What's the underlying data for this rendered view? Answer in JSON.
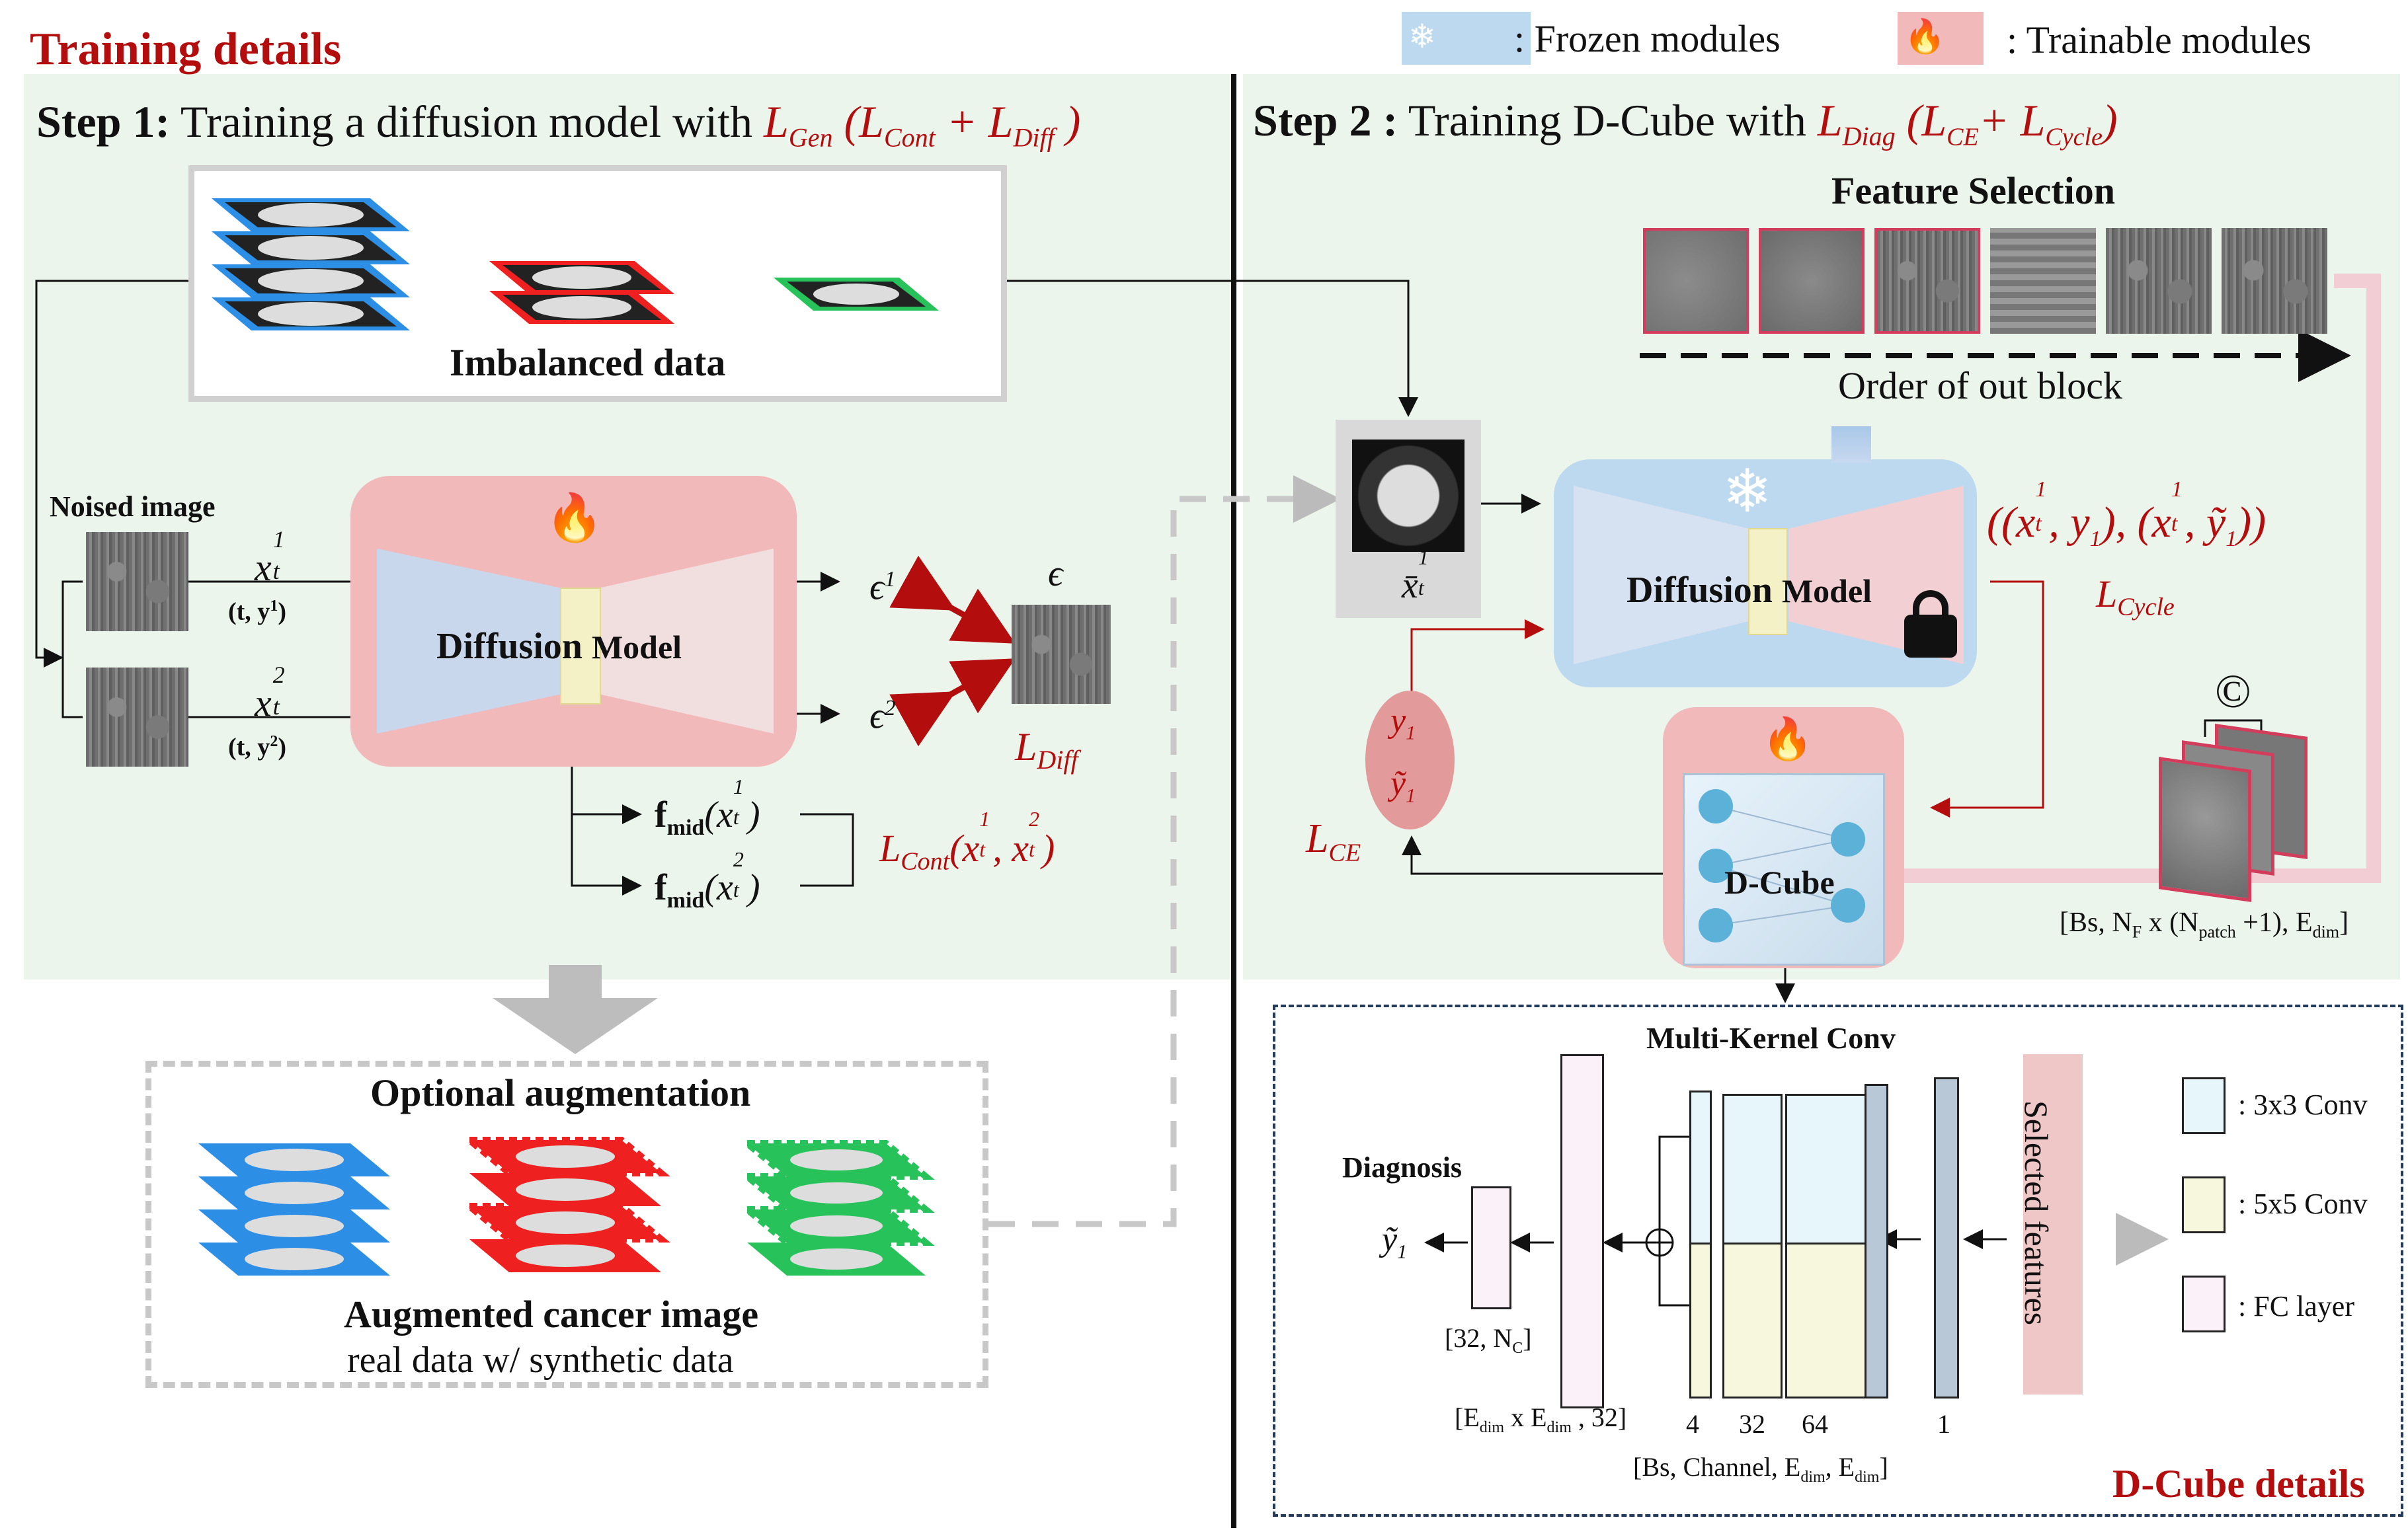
{
  "header": {
    "title": "Training details",
    "legend_frozen": ": Frozen modules",
    "legend_trainable": ": Trainable modules"
  },
  "step1": {
    "title_bold": "Step 1:",
    "title_text": "Training a diffusion model with",
    "loss_label": "L",
    "loss_sub": "Gen",
    "loss_detail": "(L",
    "loss_cont_sub": "Cont",
    "loss_plus": "+ L",
    "loss_diff_sub": "Diff",
    "loss_close": ")",
    "imbalanced_label": "Imbalanced data",
    "noised_label": "Noised image",
    "x1": "x",
    "x1_sup": "1",
    "x1_sub": "t",
    "x1_cond": "(t, y",
    "x1_cond_sup": "1",
    "x1_cond_close": ")",
    "x2": "x",
    "x2_sup": "2",
    "x2_sub": "t",
    "x2_cond": "(t, y",
    "x2_cond_sup": "2",
    "x2_cond_close": ")",
    "model_bold": "Diffusion",
    "model_text": "Model",
    "eps1": "ϵ",
    "eps1_sup": "1",
    "eps2": "ϵ",
    "eps2_sup": "2",
    "eps": "ϵ",
    "ldiff": "L",
    "ldiff_sub": "Diff",
    "fmid1": "f",
    "fmid1_sub": "mid",
    "fmid1_arg": "(x",
    "fmid1_arg_sup": "1",
    "fmid1_arg_sub": "t",
    "fmid1_close": ")",
    "fmid2": "f",
    "fmid2_sub": "mid",
    "fmid2_arg": "(x",
    "fmid2_arg_sup": "2",
    "fmid2_arg_sub": "t",
    "fmid2_close": ")",
    "lcont": "L",
    "lcont_sub": "Cont",
    "lcont_args": "(x",
    "lcont_a_sup": "1",
    "lcont_a_sub": "t",
    "lcont_comma": ", x",
    "lcont_b_sup": "2",
    "lcont_b_sub": "t",
    "lcont_close": ")"
  },
  "augmentation": {
    "title": "Optional augmentation",
    "subtitle": "Augmented cancer image",
    "note": "real data  w/ synthetic data"
  },
  "step2": {
    "title_bold": "Step 2 :",
    "title_text": "Training D-Cube with",
    "loss_label": "L",
    "loss_sub": "Diag",
    "loss_open": "(L",
    "loss_ce_sub": "CE",
    "loss_plus": "+ L",
    "loss_cycle_sub": "Cycle",
    "loss_close": ")",
    "feature_selection": "Feature Selection",
    "order_label": "Order of out block",
    "xbar": "x̄",
    "xbar_sup": "1",
    "xbar_sub": "t",
    "model_bold": "Diffusion",
    "model_text": "Model",
    "cycle_pair": "((x",
    "cycle_a_sup": "1",
    "cycle_a_sub": "t",
    "cycle_mid": ", y",
    "cycle_mid_sub": "1",
    "cycle_mid2": "), (x",
    "cycle_b_sup": "1",
    "cycle_b_sub": "t",
    "cycle_mid3": ", ỹ",
    "cycle_mid3_sub": "1",
    "cycle_close": "))",
    "lcycle": "L",
    "lcycle_sub": "Cycle",
    "y1": "y",
    "y1_sub": "1",
    "y1t": "ỹ",
    "y1t_sub": "1",
    "lce": "L",
    "lce_sub": "CE",
    "dcube": "D-Cube",
    "concat": "©",
    "shape_bs": "[Bs, N",
    "shape_f": "F",
    "shape_x": " x (N",
    "shape_patch": "patch",
    "shape_plus": " +1), E",
    "shape_dim": "dim",
    "shape_close": "]"
  },
  "details": {
    "multi_kernel": "Multi-Kernel Conv",
    "diagnosis": "Diagnosis",
    "ytilde": "ỹ",
    "ytilde_sub": "1",
    "shape_fc": "[32, N",
    "shape_fc_sub": "C",
    "shape_fc_close": "]",
    "shape_mid": "[E",
    "shape_mid_sub1": "dim",
    "shape_mid_x": " x E",
    "shape_mid_sub2": "dim",
    "shape_mid_close": " , 32]",
    "ch4": "4",
    "ch32": "32",
    "ch64": "64",
    "ch1": "1",
    "shape_bottom": "[Bs, Channel, E",
    "shape_bottom_sub1": "dim",
    "shape_bottom_c": ", E",
    "shape_bottom_sub2": "dim",
    "shape_bottom_close": "]",
    "selected": "Selected features",
    "legend_3x3": ": 3x3 Conv",
    "legend_5x5": ": 5x5 Conv",
    "legend_fc": ": FC layer",
    "title": "D-Cube details"
  },
  "colors": {
    "accent_red": "#b30d0d",
    "frozen_blue": "#bcd9ef",
    "trainable_pink": "#f1b9b9",
    "panel_green": "#ecf5ec",
    "conv3_fill": "#e6f6fb",
    "conv5_fill": "#f6f7dc",
    "fc_fill": "#fbf1f8"
  },
  "icons": {
    "snowflake": "snowflake-icon",
    "flame": "flame-icon",
    "lock": "lock-icon"
  }
}
